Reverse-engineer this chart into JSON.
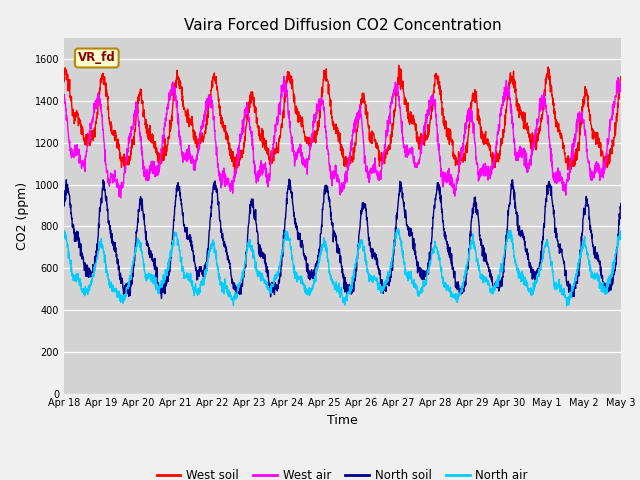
{
  "title": "Vaira Forced Diffusion CO2 Concentration",
  "xlabel": "Time",
  "ylabel": "CO2 (ppm)",
  "ylim": [
    0,
    1700
  ],
  "yticks": [
    0,
    200,
    400,
    600,
    800,
    1000,
    1200,
    1400,
    1600
  ],
  "bg_color": "#d3d3d3",
  "fig_color": "#f0f0f0",
  "west_soil_color": "#ff0000",
  "west_air_color": "#ff00ff",
  "north_soil_color": "#00008b",
  "north_air_color": "#00ccff",
  "legend_labels": [
    "West soil",
    "West air",
    "North soil",
    "North air"
  ],
  "vr_fd_label": "VR_fd",
  "line_width": 1.0,
  "tick_fontsize": 7.0,
  "title_fontsize": 11,
  "label_fontsize": 9
}
